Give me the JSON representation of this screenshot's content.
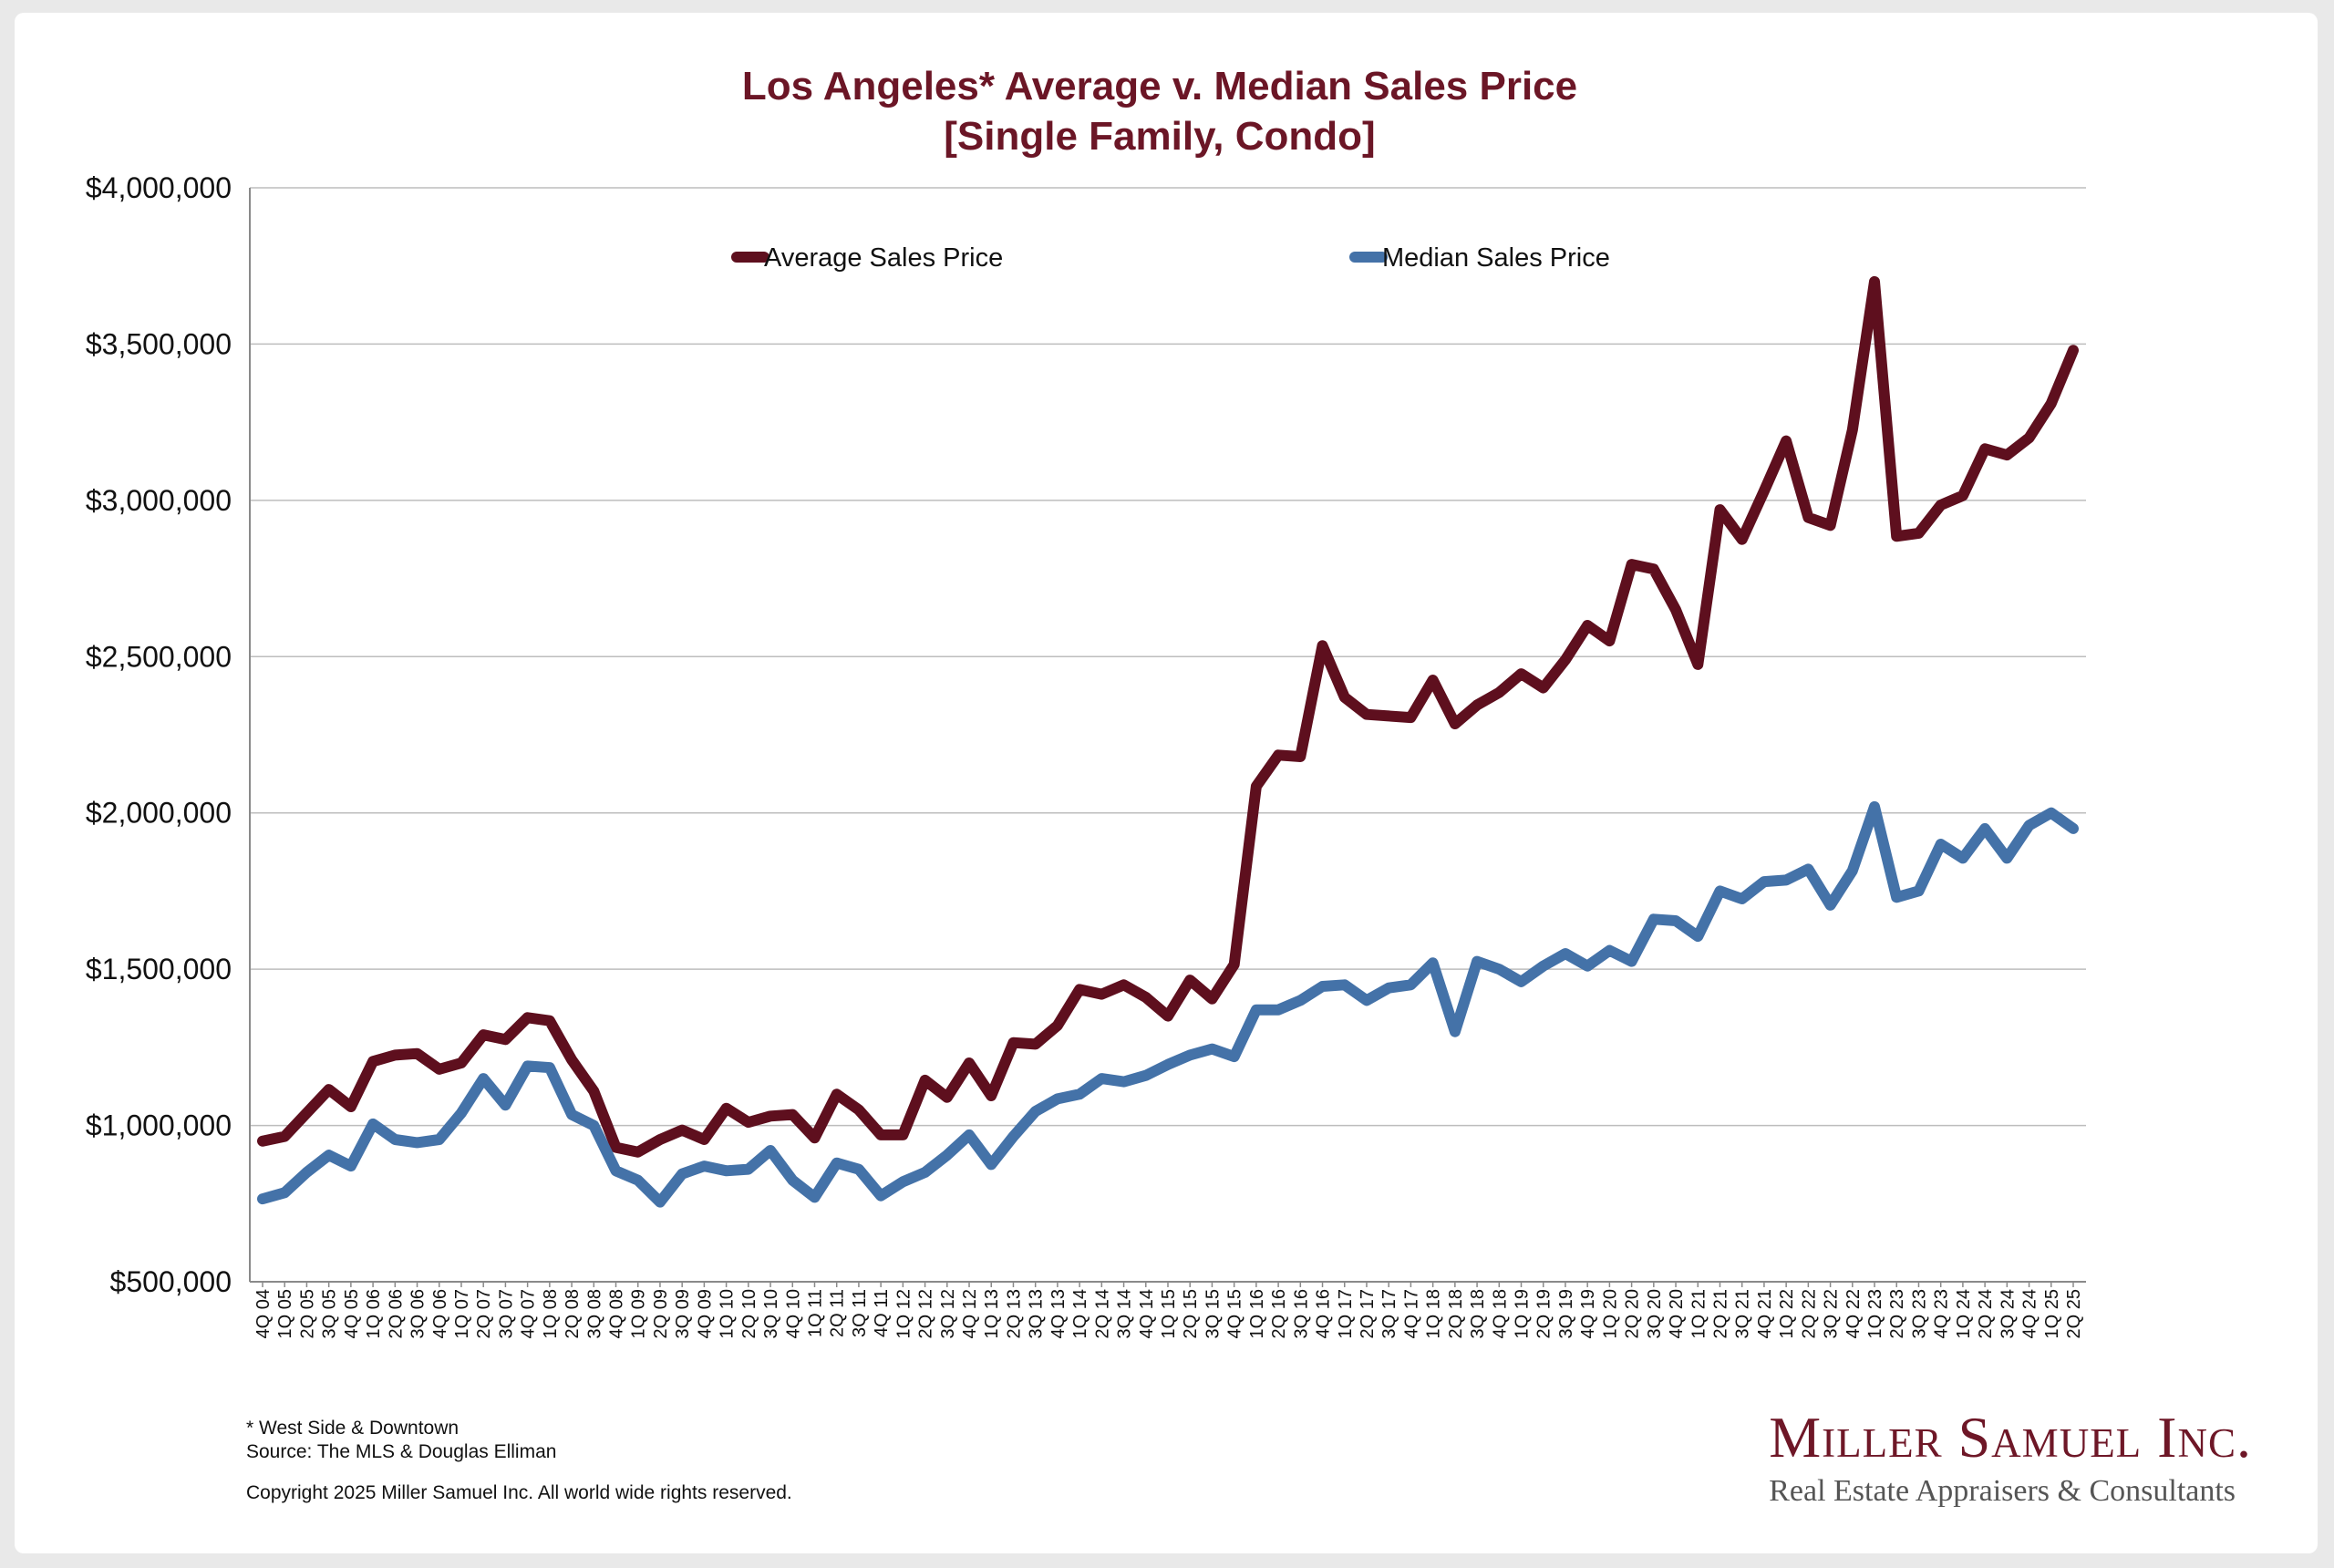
{
  "chart_data": {
    "type": "line",
    "title": "Los Angeles* Average v. Median Sales Price",
    "subtitle": "[Single Family, Condo]",
    "xlabel": "",
    "ylabel": "",
    "ylim": [
      500000,
      4000000
    ],
    "yticks": [
      "$500,000",
      "$1,000,000",
      "$1,500,000",
      "$2,000,000",
      "$2,500,000",
      "$3,000,000",
      "$3,500,000",
      "$4,000,000"
    ],
    "grid": true,
    "legend_position": "top",
    "categories": [
      "4Q 04",
      "1Q 05",
      "2Q 05",
      "3Q 05",
      "4Q 05",
      "1Q 06",
      "2Q 06",
      "3Q 06",
      "4Q 06",
      "1Q 07",
      "2Q 07",
      "3Q 07",
      "4Q 07",
      "1Q 08",
      "2Q 08",
      "3Q 08",
      "4Q 08",
      "1Q 09",
      "2Q 09",
      "3Q 09",
      "4Q 09",
      "1Q 10",
      "2Q 10",
      "3Q 10",
      "4Q 10",
      "1Q 11",
      "2Q 11",
      "3Q 11",
      "4Q 11",
      "1Q 12",
      "2Q 12",
      "3Q 12",
      "4Q 12",
      "1Q 13",
      "2Q 13",
      "3Q 13",
      "4Q 13",
      "1Q 14",
      "2Q 14",
      "3Q 14",
      "4Q 14",
      "1Q 15",
      "2Q 15",
      "3Q 15",
      "4Q 15",
      "1Q 16",
      "2Q 16",
      "3Q 16",
      "4Q 16",
      "1Q 17",
      "2Q 17",
      "3Q 17",
      "4Q 17",
      "1Q 18",
      "2Q 18",
      "3Q 18",
      "4Q 18",
      "1Q 19",
      "2Q 19",
      "3Q 19",
      "4Q 19",
      "1Q 20",
      "2Q 20",
      "3Q 20",
      "4Q 20",
      "1Q 21",
      "2Q 21",
      "3Q 21",
      "4Q 21",
      "1Q 22",
      "2Q 22",
      "3Q 22",
      "4Q 22",
      "1Q 23",
      "2Q 23",
      "3Q 23",
      "4Q 23",
      "1Q 24",
      "2Q 24",
      "3Q 24",
      "4Q 24",
      "1Q 25",
      "2Q 25"
    ],
    "series": [
      {
        "name": "Average Sales Price",
        "color": "#5e0f1e",
        "values": [
          950000,
          965000,
          1040000,
          1115000,
          1060000,
          1205000,
          1225000,
          1230000,
          1180000,
          1200000,
          1290000,
          1275000,
          1345000,
          1335000,
          1210000,
          1110000,
          930000,
          915000,
          955000,
          985000,
          955000,
          1055000,
          1010000,
          1030000,
          1035000,
          960000,
          1100000,
          1050000,
          970000,
          970000,
          1145000,
          1090000,
          1200000,
          1095000,
          1265000,
          1260000,
          1320000,
          1435000,
          1420000,
          1450000,
          1410000,
          1350000,
          1465000,
          1405000,
          1515000,
          2085000,
          2185000,
          2180000,
          2535000,
          2370000,
          2315000,
          2310000,
          2305000,
          2425000,
          2285000,
          2345000,
          2385000,
          2445000,
          2400000,
          2490000,
          2600000,
          2550000,
          2795000,
          2780000,
          2650000,
          2475000,
          2970000,
          2875000,
          3030000,
          3190000,
          2945000,
          2920000,
          3225000,
          3700000,
          2885000,
          2895000,
          2985000,
          3015000,
          3165000,
          3145000,
          3200000,
          3310000,
          3480000
        ]
      },
      {
        "name": "Median Sales Price",
        "color": "#4472a8",
        "values": [
          765000,
          785000,
          850000,
          905000,
          870000,
          1005000,
          955000,
          945000,
          955000,
          1040000,
          1150000,
          1065000,
          1190000,
          1185000,
          1035000,
          1000000,
          855000,
          825000,
          755000,
          845000,
          870000,
          855000,
          860000,
          920000,
          825000,
          770000,
          880000,
          860000,
          775000,
          820000,
          850000,
          905000,
          970000,
          875000,
          965000,
          1045000,
          1085000,
          1100000,
          1150000,
          1140000,
          1160000,
          1195000,
          1225000,
          1245000,
          1220000,
          1370000,
          1370000,
          1400000,
          1445000,
          1450000,
          1400000,
          1440000,
          1450000,
          1520000,
          1300000,
          1525000,
          1500000,
          1460000,
          1510000,
          1550000,
          1510000,
          1560000,
          1525000,
          1660000,
          1655000,
          1605000,
          1750000,
          1725000,
          1780000,
          1785000,
          1820000,
          1705000,
          1815000,
          2020000,
          1730000,
          1750000,
          1900000,
          1855000,
          1950000,
          1855000,
          1960000,
          2000000,
          1950000
        ]
      }
    ]
  },
  "footnotes": {
    "note": "* West Side & Downtown",
    "source": "Source: The MLS & Douglas Elliman",
    "copyright": "Copyright 2025 Miller Samuel Inc.  All world wide rights reserved."
  },
  "logo": {
    "name": "Miller Samuel Inc.",
    "tagline": "Real Estate Appraisers & Consultants"
  }
}
